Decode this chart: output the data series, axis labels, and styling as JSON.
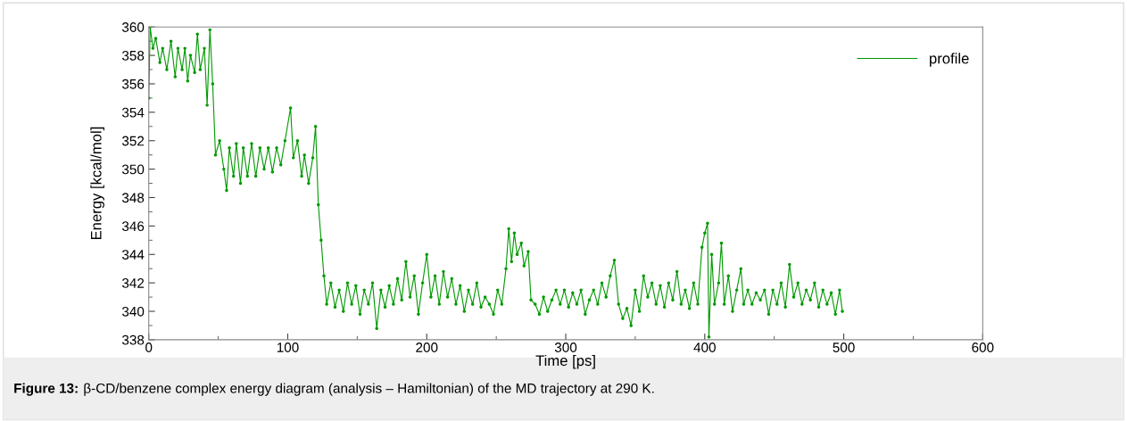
{
  "chart_data": {
    "type": "line",
    "xlabel": "Time [ps]",
    "ylabel": "Energy [kcal/mol]",
    "xlim": [
      0,
      600
    ],
    "xticks": [
      0,
      100,
      200,
      300,
      400,
      500,
      600
    ],
    "ylim": [
      338,
      360
    ],
    "yticks": [
      338,
      340,
      342,
      344,
      346,
      348,
      350,
      352,
      354,
      356,
      358,
      360
    ],
    "grid": false,
    "legend": "top right",
    "marker": "circle",
    "line_style": "solid",
    "annotations": [
      "Figure 13:",
      "β-CD/benzene complex energy diagram (analysis – Hamiltonian) of the MD trajectory at 290 K."
    ],
    "series": [
      {
        "name": "profile",
        "color": "#009900",
        "x": [
          0,
          1,
          3,
          5,
          8,
          10,
          13,
          16,
          19,
          21,
          24,
          26,
          28,
          30,
          33,
          35,
          37,
          40,
          42,
          44,
          46,
          48,
          51,
          54,
          56,
          58,
          61,
          63,
          66,
          68,
          71,
          74,
          77,
          80,
          83,
          86,
          89,
          92,
          95,
          98,
          102,
          104,
          107,
          110,
          112,
          115,
          118,
          120,
          122,
          124,
          126,
          128,
          131,
          134,
          137,
          140,
          143,
          146,
          149,
          152,
          155,
          158,
          161,
          164,
          167,
          170,
          173,
          176,
          179,
          182,
          185,
          188,
          191,
          194,
          197,
          200,
          203,
          206,
          209,
          212,
          215,
          218,
          221,
          224,
          227,
          230,
          233,
          236,
          239,
          242,
          245,
          248,
          251,
          254,
          257,
          259,
          261,
          263,
          265,
          268,
          270,
          273,
          275,
          278,
          281,
          284,
          287,
          290,
          293,
          296,
          299,
          302,
          305,
          308,
          311,
          314,
          317,
          320,
          323,
          326,
          329,
          332,
          335,
          338,
          341,
          344,
          347,
          350,
          353,
          356,
          359,
          362,
          365,
          368,
          371,
          374,
          377,
          380,
          383,
          386,
          389,
          392,
          395,
          398,
          400,
          402,
          403,
          405,
          407,
          410,
          412,
          414,
          417,
          420,
          423,
          426,
          428,
          431,
          434,
          437,
          440,
          443,
          446,
          449,
          452,
          455,
          458,
          461,
          464,
          467,
          470,
          473,
          476,
          479,
          482,
          485,
          488,
          491,
          494,
          497,
          499
        ],
        "values": [
          355,
          360,
          358.5,
          359.2,
          357.5,
          358.5,
          357,
          359,
          356.5,
          358.5,
          357,
          358.5,
          356.2,
          358,
          356.8,
          359.5,
          357,
          358.5,
          354.5,
          359.8,
          356,
          351,
          352,
          350,
          348.5,
          351.5,
          349.5,
          351.8,
          349,
          351.5,
          349.5,
          351.8,
          349.5,
          351.5,
          350,
          351.5,
          349.8,
          351.5,
          350.3,
          352,
          354.3,
          350.8,
          352,
          349.5,
          351,
          349,
          350.8,
          353,
          347.5,
          345,
          342.5,
          340.5,
          342,
          340.3,
          341.5,
          340,
          342,
          340.5,
          341.8,
          339.8,
          341.5,
          340.5,
          342,
          338.8,
          341.5,
          340.3,
          341.8,
          340.5,
          342.3,
          340.8,
          343.5,
          341,
          342.5,
          339.8,
          342,
          344,
          341,
          342.5,
          340.5,
          342.8,
          341,
          342.3,
          340.5,
          341.8,
          340,
          341.5,
          340.5,
          342,
          340.3,
          341,
          340.5,
          339.8,
          341.5,
          340.5,
          343,
          345.8,
          343.5,
          345.5,
          344,
          344.8,
          343.2,
          344.2,
          340.8,
          340.5,
          339.8,
          341,
          340,
          340.8,
          341.5,
          340.5,
          341.5,
          340.3,
          341.3,
          340.5,
          341.5,
          339.8,
          340.8,
          341.5,
          340.5,
          342,
          341,
          342.5,
          343.6,
          340.5,
          339.5,
          340.2,
          339,
          341.5,
          340,
          342.5,
          341,
          342,
          340.5,
          341.8,
          340.3,
          342,
          340.8,
          342.8,
          340.5,
          341.5,
          340.2,
          342,
          340.5,
          344.5,
          345.5,
          346.2,
          338.2,
          344,
          340.5,
          342,
          344.8,
          340.5,
          342.5,
          340,
          341.5,
          343,
          340.5,
          341.5,
          340.5,
          341.3,
          340.8,
          341.5,
          339.8,
          341.5,
          340.5,
          342,
          340.3,
          343.3,
          341,
          342,
          340.5,
          341.5,
          340.8,
          342,
          340.3,
          341.5,
          340.5,
          341.3,
          339.8,
          341.5,
          340
        ]
      }
    ]
  }
}
